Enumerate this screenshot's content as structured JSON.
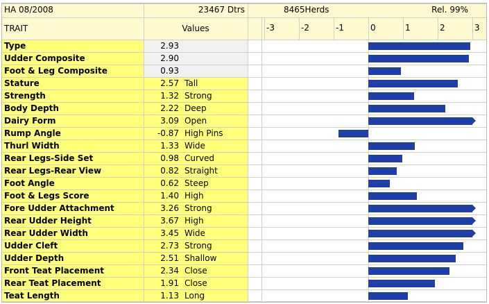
{
  "header": {
    "title": "HA 08/2008",
    "dtrs": "23467 Dtrs",
    "herds": "8465Herds",
    "rel": "Rel. 99%",
    "trait_label": "TRAIT",
    "values_label": "Values"
  },
  "axis": {
    "ticks": [
      "-3",
      "-2",
      "-1",
      "0",
      "1",
      "2",
      "3"
    ],
    "min": -3,
    "max": 3
  },
  "colors": {
    "bar": "#1f3fa8",
    "highlight": "#ffff7a",
    "composite": "#f1f1f1"
  },
  "rows": [
    {
      "name": "Type",
      "value": "2.93",
      "desc": "",
      "composite": true
    },
    {
      "name": "Udder Composite",
      "value": "2.90",
      "desc": "",
      "composite": true
    },
    {
      "name": "Foot & Leg Composite",
      "value": "0.93",
      "desc": "",
      "composite": true
    },
    {
      "name": "Stature",
      "value": "2.57",
      "desc": "Tall",
      "composite": false
    },
    {
      "name": "Strength",
      "value": "1.32",
      "desc": "Strong",
      "composite": false
    },
    {
      "name": "Body Depth",
      "value": "2.22",
      "desc": "Deep",
      "composite": false
    },
    {
      "name": "Dairy Form",
      "value": "3.09",
      "desc": "Open",
      "composite": false
    },
    {
      "name": "Rump Angle",
      "value": "-0.87",
      "desc": "High Pins",
      "composite": false
    },
    {
      "name": "Thurl Width",
      "value": "1.33",
      "desc": "Wide",
      "composite": false
    },
    {
      "name": "Rear Legs-Side Set",
      "value": "0.98",
      "desc": "Curved",
      "composite": false
    },
    {
      "name": "Rear Legs-Rear View",
      "value": "0.82",
      "desc": "Straight",
      "composite": false
    },
    {
      "name": "Foot Angle",
      "value": "0.62",
      "desc": "Steep",
      "composite": false
    },
    {
      "name": "Foot & Legs Score",
      "value": "1.40",
      "desc": "High",
      "composite": false
    },
    {
      "name": "Fore Udder Attachment",
      "value": "3.26",
      "desc": "Strong",
      "composite": false
    },
    {
      "name": "Rear Udder Height",
      "value": "3.67",
      "desc": "High",
      "composite": false
    },
    {
      "name": "Rear Udder Width",
      "value": "3.45",
      "desc": "Wide",
      "composite": false
    },
    {
      "name": "Udder Cleft",
      "value": "2.73",
      "desc": "Strong",
      "composite": false
    },
    {
      "name": "Udder Depth",
      "value": "2.51",
      "desc": "Shallow",
      "composite": false
    },
    {
      "name": "Front Teat Placement",
      "value": "2.34",
      "desc": "Close",
      "composite": false
    },
    {
      "name": "Rear Teat Placement",
      "value": "1.91",
      "desc": "Close",
      "composite": false
    },
    {
      "name": "Teat Length",
      "value": "1.13",
      "desc": "Long",
      "composite": false
    }
  ]
}
